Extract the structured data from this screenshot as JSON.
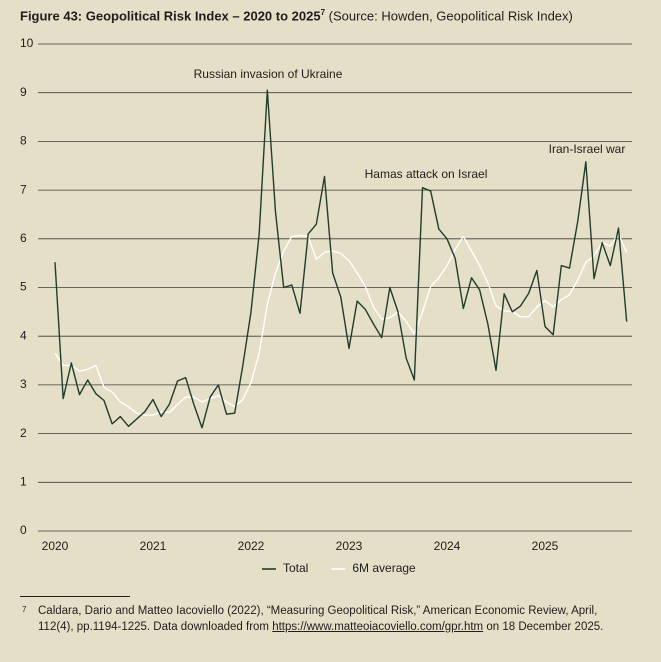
{
  "chart_data": {
    "type": "line",
    "title": "Figure 43: Geopolitical Risk Index – 2020 to 2025",
    "title_note": "7",
    "subtitle": "(Source: Howden, Geopolitical Risk Index)",
    "categories": [
      "2020",
      null,
      null,
      null,
      null,
      null,
      null,
      null,
      null,
      null,
      null,
      null,
      "2021",
      null,
      null,
      null,
      null,
      null,
      null,
      null,
      null,
      null,
      null,
      null,
      "2022",
      null,
      null,
      null,
      null,
      null,
      null,
      null,
      null,
      null,
      null,
      null,
      "2023",
      null,
      null,
      null,
      null,
      null,
      null,
      null,
      null,
      null,
      null,
      null,
      "2024",
      null,
      null,
      null,
      null,
      null,
      null,
      null,
      null,
      null,
      null,
      null,
      "2025",
      null,
      null,
      null,
      null,
      null,
      null,
      null,
      null,
      null,
      null
    ],
    "series": [
      {
        "name": "Total",
        "color": "#1f3d2b",
        "values": [
          5.52,
          2.72,
          3.45,
          2.8,
          3.1,
          2.82,
          2.68,
          2.2,
          2.35,
          2.15,
          2.3,
          2.45,
          2.7,
          2.35,
          2.6,
          3.08,
          3.15,
          2.6,
          2.12,
          2.75,
          3.0,
          2.4,
          2.42,
          3.4,
          4.5,
          6.1,
          9.05,
          6.55,
          5.0,
          5.05,
          4.47,
          6.1,
          6.3,
          7.28,
          5.3,
          4.8,
          3.75,
          4.72,
          4.55,
          4.25,
          3.97,
          5.0,
          4.5,
          3.55,
          3.1,
          7.05,
          6.98,
          6.2,
          6.0,
          5.6,
          4.57,
          5.2,
          4.95,
          4.25,
          3.3,
          4.87,
          4.5,
          4.62,
          4.88,
          5.35,
          4.2,
          4.03,
          5.45,
          5.4,
          6.35,
          7.58,
          5.18,
          5.92,
          5.45,
          6.22,
          4.3
        ]
      },
      {
        "name": "6M average",
        "color": "#ffffff",
        "values": [
          3.65,
          3.4,
          3.4,
          3.28,
          3.32,
          3.4,
          2.95,
          2.85,
          2.65,
          2.55,
          2.42,
          2.38,
          2.38,
          2.45,
          2.43,
          2.6,
          2.75,
          2.75,
          2.65,
          2.72,
          2.78,
          2.65,
          2.55,
          2.7,
          3.05,
          3.65,
          4.65,
          5.3,
          5.75,
          6.05,
          6.07,
          6.05,
          5.58,
          5.72,
          5.75,
          5.7,
          5.55,
          5.3,
          5.02,
          4.6,
          4.35,
          4.38,
          4.5,
          4.3,
          4.05,
          4.5,
          5.02,
          5.2,
          5.45,
          5.78,
          6.05,
          5.75,
          5.45,
          5.1,
          4.62,
          4.52,
          4.5,
          4.4,
          4.4,
          4.6,
          4.73,
          4.6,
          4.75,
          4.85,
          5.15,
          5.52,
          5.65,
          5.92,
          5.85,
          6.1,
          5.72
        ]
      }
    ],
    "ylim": [
      0,
      10
    ],
    "yticks": [
      0,
      1,
      2,
      3,
      4,
      5,
      6,
      7,
      8,
      9,
      10
    ],
    "grid": true,
    "legend": "bottom",
    "annotations": [
      "Russian invasion of Ukraine",
      "Hamas attack on Israel",
      "Iran-Israel war"
    ],
    "footnote": {
      "marker": "7",
      "line1": "Caldara, Dario and Matteo Iacoviello (2022), “Measuring Geopolitical Risk,” American Economic Review, April,",
      "line2": "112(4), pp.1194-1225. Data downloaded from",
      "link": "https://www.matteoiacoviello.com/gpr.htm",
      "line3": "on 18 December 2025."
    }
  }
}
